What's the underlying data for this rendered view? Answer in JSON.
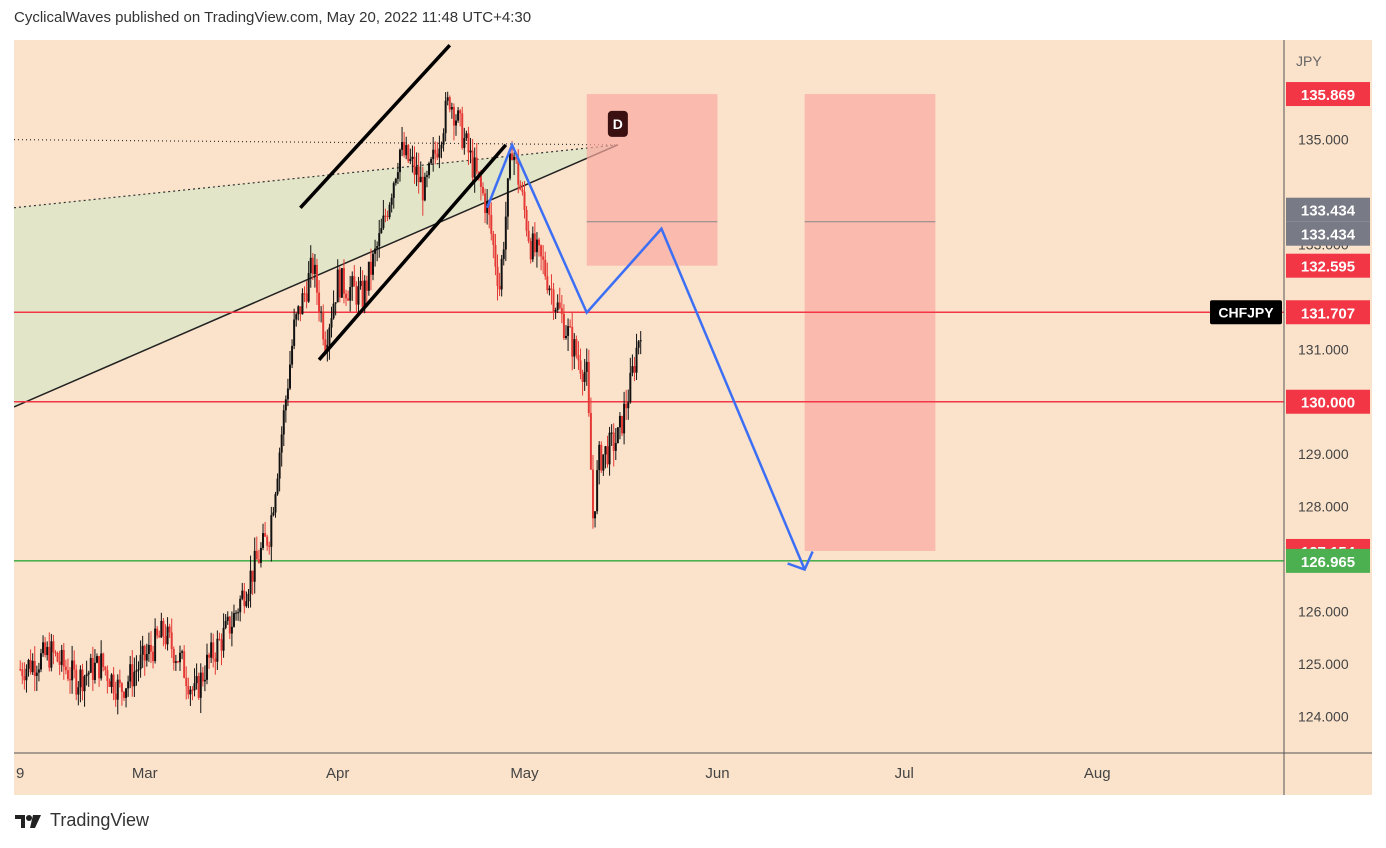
{
  "header": {
    "published_line": "CyclicalWaves published on TradingView.com, May 20, 2022 11:48 UTC+4:30"
  },
  "footer": {
    "brand": "TradingView",
    "logo_icon": "tradingview-logo-icon"
  },
  "chart_data": {
    "type": "candlestick",
    "symbol": "CHFJPY",
    "currency": "JPY",
    "y_range": [
      123.3,
      136.9
    ],
    "y_ticks": [
      "124.000",
      "125.000",
      "126.000",
      "127.000",
      "128.000",
      "129.000",
      "130.000",
      "131.000",
      "133.000",
      "135.000"
    ],
    "x_ticks": [
      "9",
      "Mar",
      "Apr",
      "May",
      "Jun",
      "Jul",
      "Aug"
    ],
    "x_tick_dates": [
      "2022-02-09",
      "2022-03-01",
      "2022-04-01",
      "2022-05-01",
      "2022-06-01",
      "2022-07-01",
      "2022-08-01"
    ],
    "x_range_dates": [
      "2022-02-08",
      "2022-08-31"
    ],
    "price_labels": [
      {
        "text": "135.869",
        "color": "#f23645"
      },
      {
        "text": "133.434",
        "color": "#787b86"
      },
      {
        "text": "133.434",
        "color": "#787b86"
      },
      {
        "text": "132.595",
        "color": "#f23645"
      },
      {
        "text": "131.707",
        "color": "#f23645"
      },
      {
        "text": "130.000",
        "color": "#f23645"
      },
      {
        "text": "127.154",
        "color": "#f23645"
      },
      {
        "text": "126.965",
        "color": "#4caf50"
      }
    ],
    "horizontal_lines": [
      {
        "price": 131.707,
        "color": "#f23645"
      },
      {
        "price": 130.0,
        "color": "#f23645"
      },
      {
        "price": 126.965,
        "color": "#4caf50"
      }
    ],
    "zones": [
      {
        "from": "2022-05-11",
        "to": "2022-06-01",
        "top": 135.869,
        "bottom": 132.595,
        "mid": 133.434,
        "color": "#f9a8a0"
      },
      {
        "from": "2022-06-15",
        "to": "2022-07-06",
        "top": 135.869,
        "bottom": 127.154,
        "mid": 133.434,
        "color": "#f9a8a0"
      }
    ],
    "wedge": {
      "upper": [
        {
          "date": "2022-02-08",
          "price": 133.7
        },
        {
          "date": "2022-05-16",
          "price": 134.9
        }
      ],
      "lower": [
        {
          "date": "2022-02-08",
          "price": 129.9
        },
        {
          "date": "2022-05-16",
          "price": 134.9
        }
      ],
      "fill": "#dfe4c6"
    },
    "trend_line": [
      {
        "date": "2022-02-08",
        "price": 135.0
      },
      {
        "date": "2022-05-16",
        "price": 134.9
      }
    ],
    "channel": [
      [
        {
          "date": "2022-03-26",
          "price": 133.7
        },
        {
          "date": "2022-04-19",
          "price": 136.8
        }
      ],
      [
        {
          "date": "2022-03-29",
          "price": 130.8
        },
        {
          "date": "2022-04-28",
          "price": 134.9
        }
      ]
    ],
    "marker": {
      "label": "D",
      "date": "2022-05-16",
      "price": 135.3
    },
    "projection": [
      {
        "date": "2022-04-25",
        "price": 133.7
      },
      {
        "date": "2022-04-29",
        "price": 134.9
      },
      {
        "date": "2022-05-11",
        "price": 131.7
      },
      {
        "date": "2022-05-23",
        "price": 133.3
      },
      {
        "date": "2022-06-15",
        "price": 126.8
      }
    ],
    "ohlc_daily_close": [
      {
        "date": "2022-02-09",
        "close": 124.9
      },
      {
        "date": "2022-02-14",
        "close": 125.2
      },
      {
        "date": "2022-02-18",
        "close": 124.7
      },
      {
        "date": "2022-02-22",
        "close": 125.0
      },
      {
        "date": "2022-02-25",
        "close": 124.5
      },
      {
        "date": "2022-03-01",
        "close": 125.1
      },
      {
        "date": "2022-03-04",
        "close": 125.6
      },
      {
        "date": "2022-03-07",
        "close": 125.0
      },
      {
        "date": "2022-03-09",
        "close": 124.4
      },
      {
        "date": "2022-03-11",
        "close": 125.0
      },
      {
        "date": "2022-03-15",
        "close": 125.8
      },
      {
        "date": "2022-03-17",
        "close": 126.4
      },
      {
        "date": "2022-03-21",
        "close": 127.5
      },
      {
        "date": "2022-03-23",
        "close": 129.4
      },
      {
        "date": "2022-03-25",
        "close": 131.4
      },
      {
        "date": "2022-03-28",
        "close": 132.6
      },
      {
        "date": "2022-03-30",
        "close": 131.2
      },
      {
        "date": "2022-04-01",
        "close": 132.3
      },
      {
        "date": "2022-04-05",
        "close": 132.0
      },
      {
        "date": "2022-04-08",
        "close": 133.2
      },
      {
        "date": "2022-04-11",
        "close": 134.8
      },
      {
        "date": "2022-04-13",
        "close": 134.5
      },
      {
        "date": "2022-04-15",
        "close": 134.0
      },
      {
        "date": "2022-04-19",
        "close": 135.8
      },
      {
        "date": "2022-04-21",
        "close": 135.1
      },
      {
        "date": "2022-04-25",
        "close": 133.7
      },
      {
        "date": "2022-04-27",
        "close": 132.2
      },
      {
        "date": "2022-04-29",
        "close": 134.9
      },
      {
        "date": "2022-05-02",
        "close": 133.0
      },
      {
        "date": "2022-05-04",
        "close": 132.6
      },
      {
        "date": "2022-05-06",
        "close": 131.9
      },
      {
        "date": "2022-05-09",
        "close": 131.0
      },
      {
        "date": "2022-05-11",
        "close": 130.5
      },
      {
        "date": "2022-05-12",
        "close": 127.8
      },
      {
        "date": "2022-05-13",
        "close": 128.9
      },
      {
        "date": "2022-05-16",
        "close": 129.3
      },
      {
        "date": "2022-05-18",
        "close": 130.3
      },
      {
        "date": "2022-05-20",
        "close": 131.7
      }
    ],
    "grid": false,
    "legend_position": "right-axis-labels"
  }
}
